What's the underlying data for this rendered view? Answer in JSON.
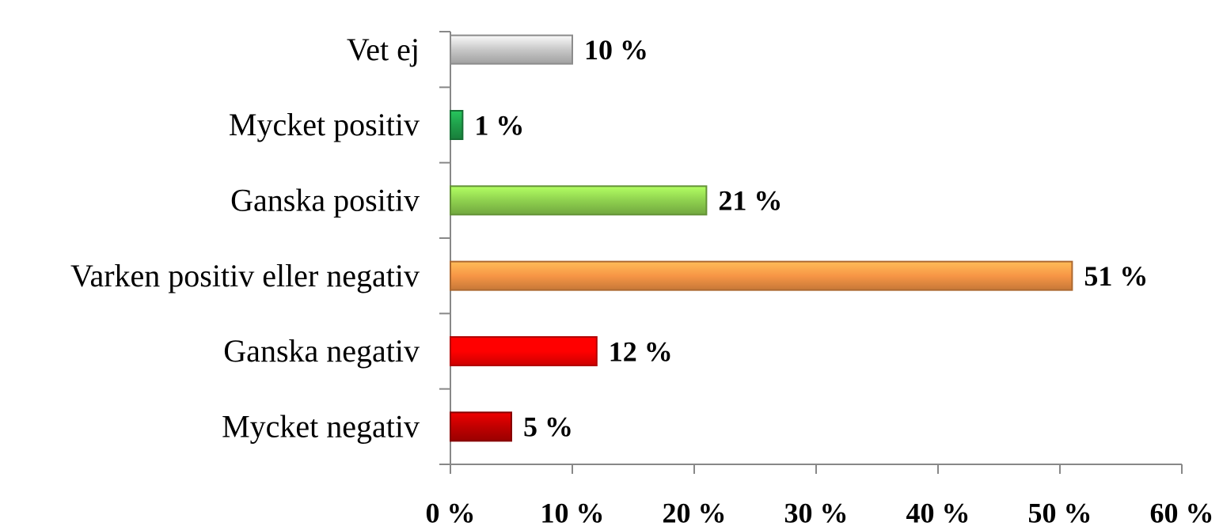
{
  "chart_data": {
    "type": "hbar",
    "categories": [
      "Vet ej",
      "Mycket positiv",
      "Ganska positiv",
      "Varken positiv eller negativ",
      "Ganska negativ",
      "Mycket negativ"
    ],
    "values": [
      10,
      1,
      21,
      51,
      12,
      5
    ],
    "value_labels": [
      "10 %",
      "1 %",
      "21 %",
      "51 %",
      "12 %",
      "5 %"
    ],
    "colors": [
      "#c8c8c8",
      "#1f9e4a",
      "#8fd14f",
      "#f79646",
      "#ff0000",
      "#c00000"
    ],
    "xlim": [
      0,
      60
    ],
    "xticks": [
      {
        "value": 0,
        "label": "0 %"
      },
      {
        "value": 10,
        "label": "10 %"
      },
      {
        "value": 20,
        "label": "20 %"
      },
      {
        "value": 30,
        "label": "30 %"
      },
      {
        "value": 40,
        "label": "40 %"
      },
      {
        "value": 50,
        "label": "50 %"
      },
      {
        "value": 60,
        "label": "60 %"
      }
    ]
  }
}
